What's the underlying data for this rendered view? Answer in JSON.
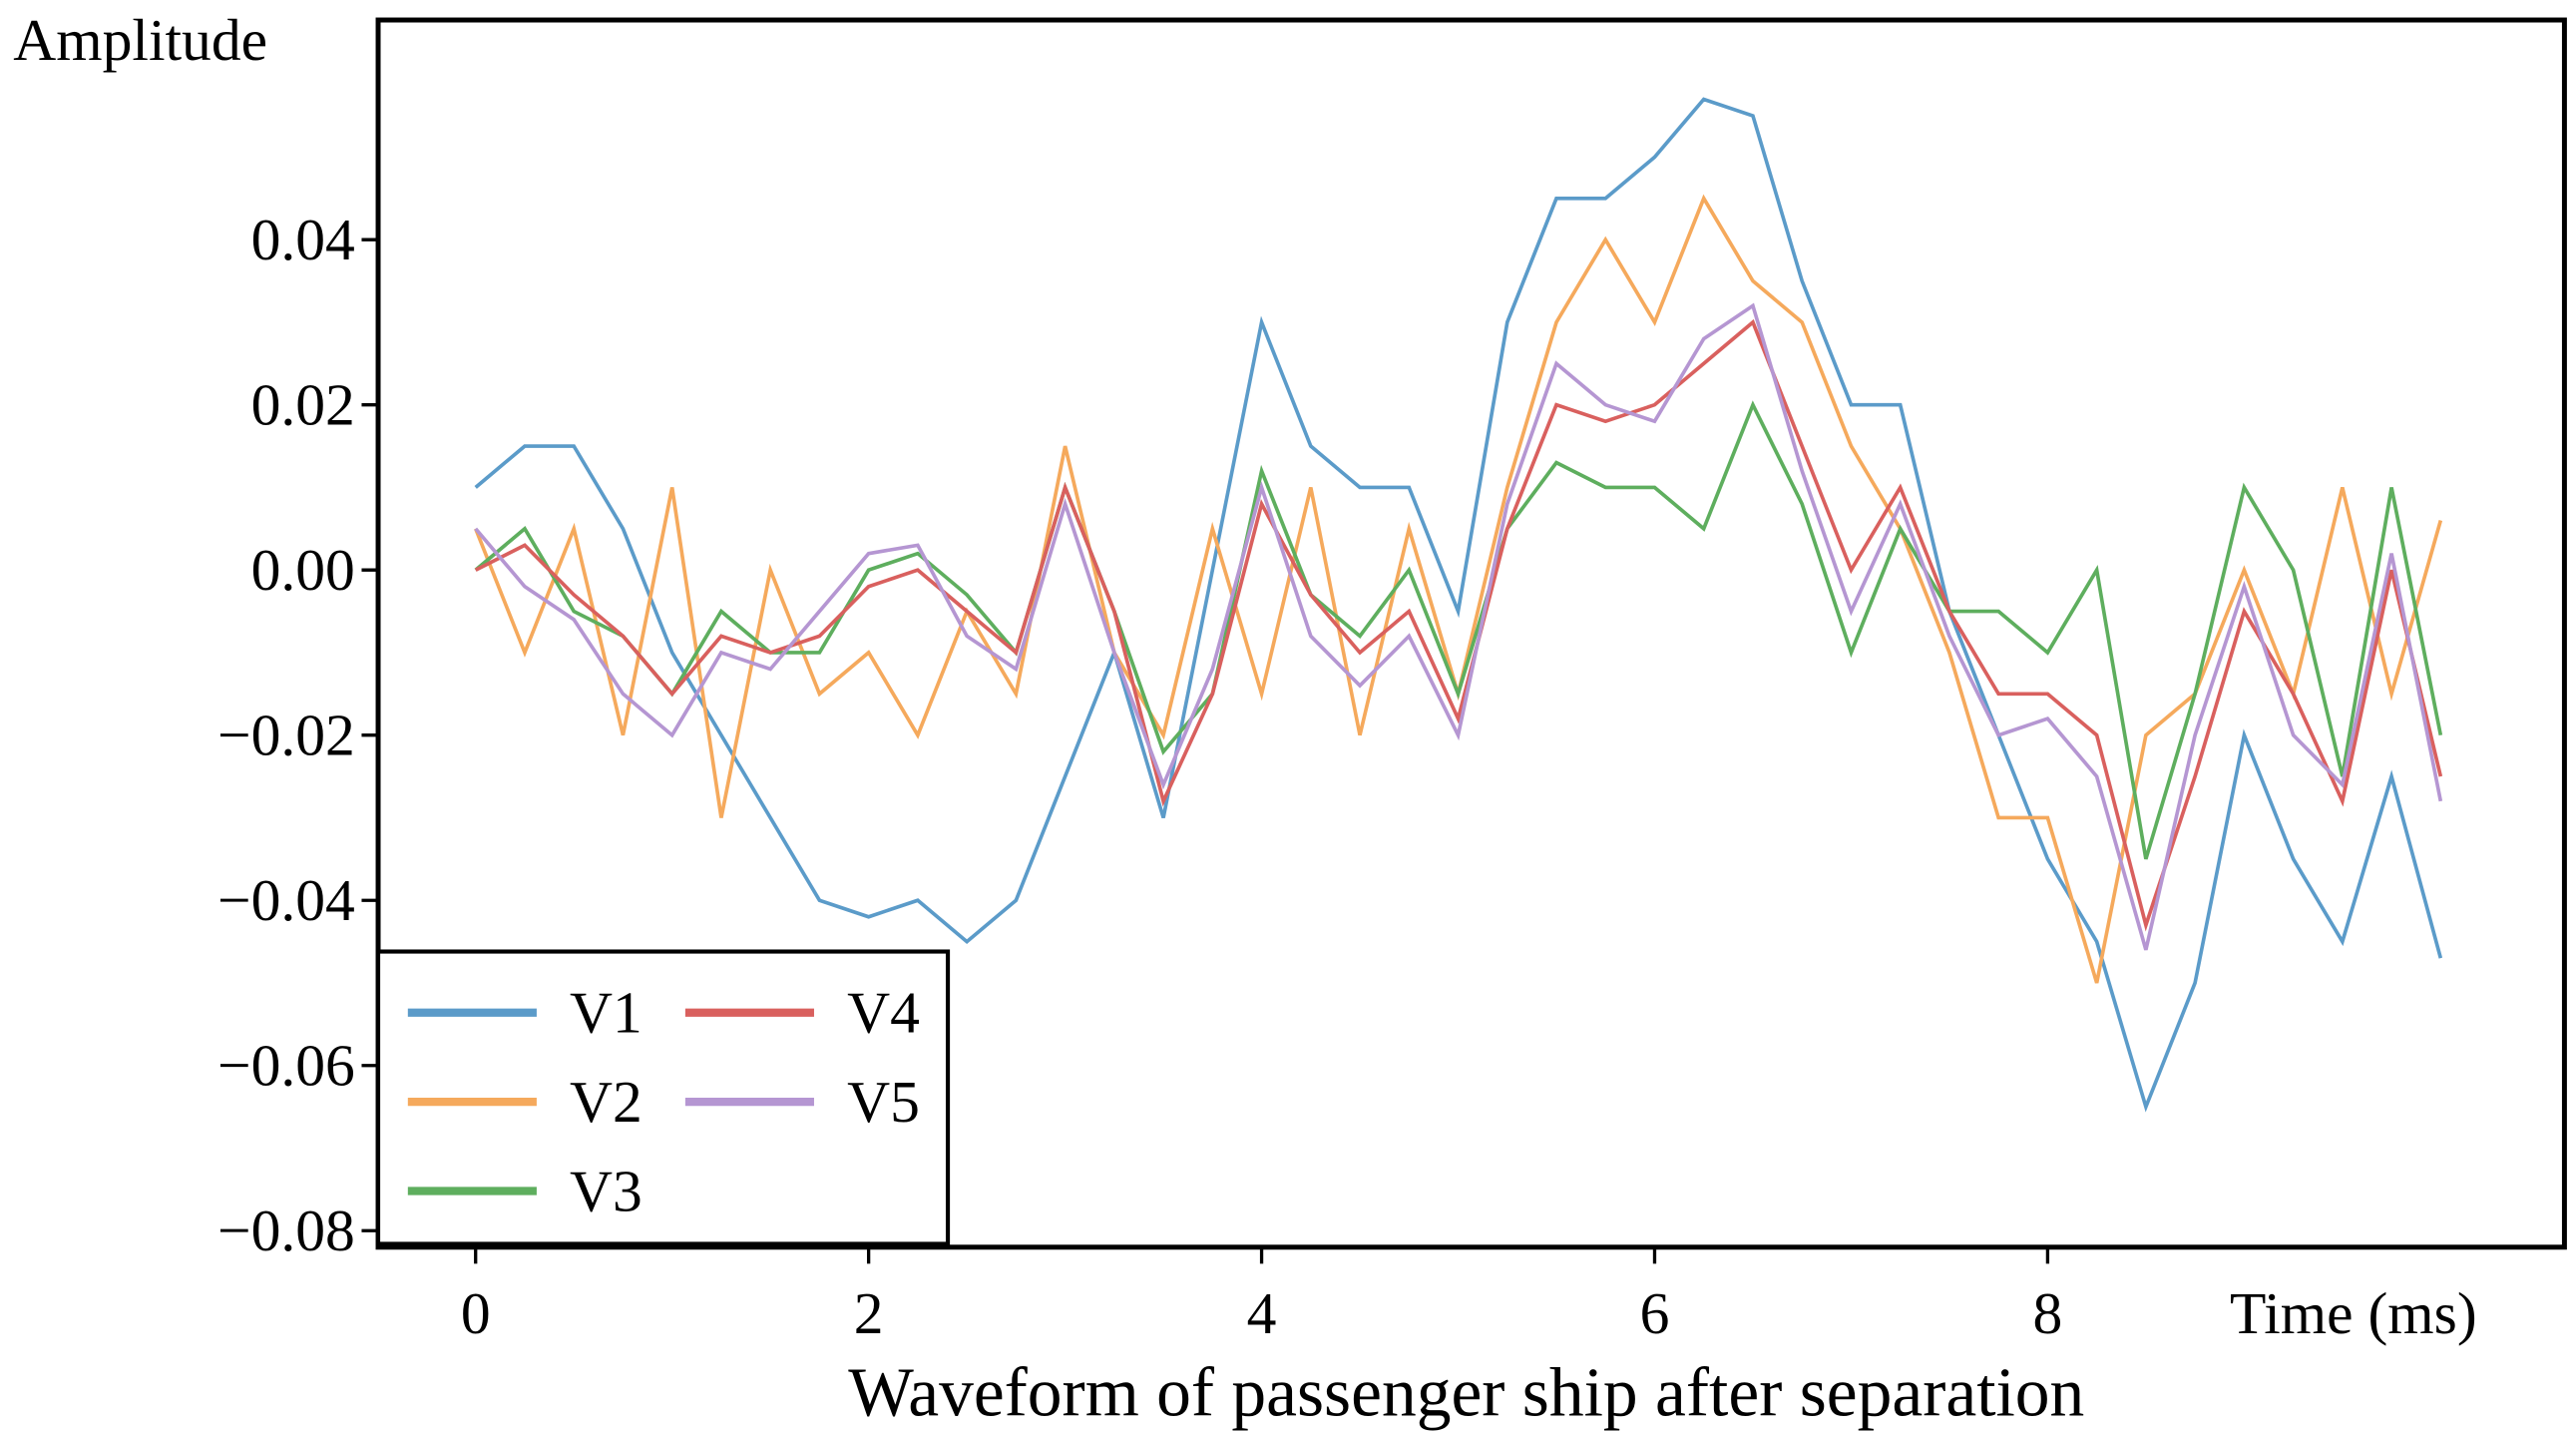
{
  "chart_data": {
    "type": "line",
    "title": "Waveform of passenger ship after separation",
    "y_label": "Amplitude",
    "x_label": "Time (ms)",
    "x": [
      0,
      0.25,
      0.5,
      0.75,
      1,
      1.25,
      1.5,
      1.75,
      2,
      2.25,
      2.5,
      2.75,
      3,
      3.25,
      3.5,
      3.75,
      4,
      4.25,
      4.5,
      4.75,
      5,
      5.25,
      5.5,
      5.75,
      6,
      6.25,
      6.5,
      6.75,
      7,
      7.25,
      7.5,
      7.75,
      8,
      8.25,
      8.5,
      8.75,
      9,
      9.25,
      9.5,
      9.75,
      10
    ],
    "series": [
      {
        "name": "V1",
        "color": "#5b9bc9",
        "values": [
          0.01,
          0.015,
          0.015,
          0.005,
          -0.01,
          -0.02,
          -0.03,
          -0.04,
          -0.042,
          -0.04,
          -0.045,
          -0.04,
          -0.025,
          -0.01,
          -0.03,
          0.0,
          0.03,
          0.015,
          0.01,
          0.01,
          -0.005,
          0.03,
          0.045,
          0.045,
          0.05,
          0.057,
          0.055,
          0.035,
          0.02,
          0.02,
          -0.005,
          -0.02,
          -0.035,
          -0.045,
          -0.065,
          -0.05,
          -0.02,
          -0.035,
          -0.045,
          -0.025,
          -0.047
        ]
      },
      {
        "name": "V2",
        "color": "#f5a95c",
        "values": [
          0.005,
          -0.01,
          0.005,
          -0.02,
          0.01,
          -0.03,
          0.0,
          -0.015,
          -0.01,
          -0.02,
          -0.005,
          -0.015,
          0.015,
          -0.01,
          -0.02,
          0.005,
          -0.015,
          0.01,
          -0.02,
          0.005,
          -0.015,
          0.01,
          0.03,
          0.04,
          0.03,
          0.045,
          0.035,
          0.03,
          0.015,
          0.005,
          -0.01,
          -0.03,
          -0.03,
          -0.05,
          -0.02,
          -0.015,
          0.0,
          -0.015,
          0.01,
          -0.015,
          0.006
        ]
      },
      {
        "name": "V3",
        "color": "#5eae5e",
        "values": [
          0.0,
          0.005,
          -0.005,
          -0.008,
          -0.015,
          -0.005,
          -0.01,
          -0.01,
          0.0,
          0.002,
          -0.003,
          -0.01,
          0.01,
          -0.005,
          -0.022,
          -0.015,
          0.012,
          -0.003,
          -0.008,
          0.0,
          -0.015,
          0.005,
          0.013,
          0.01,
          0.01,
          0.005,
          0.02,
          0.008,
          -0.01,
          0.005,
          -0.005,
          -0.005,
          -0.01,
          0.0,
          -0.035,
          -0.015,
          0.01,
          0.0,
          -0.025,
          0.01,
          -0.02
        ]
      },
      {
        "name": "V4",
        "color": "#d9605e",
        "values": [
          0.0,
          0.003,
          -0.003,
          -0.008,
          -0.015,
          -0.008,
          -0.01,
          -0.008,
          -0.002,
          0.0,
          -0.005,
          -0.01,
          0.01,
          -0.005,
          -0.028,
          -0.015,
          0.008,
          -0.003,
          -0.01,
          -0.005,
          -0.018,
          0.005,
          0.02,
          0.018,
          0.02,
          0.025,
          0.03,
          0.015,
          0.0,
          0.01,
          -0.005,
          -0.015,
          -0.015,
          -0.02,
          -0.043,
          -0.025,
          -0.005,
          -0.015,
          -0.028,
          0.0,
          -0.025
        ]
      },
      {
        "name": "V5",
        "color": "#b596d2",
        "values": [
          0.005,
          -0.002,
          -0.006,
          -0.015,
          -0.02,
          -0.01,
          -0.012,
          -0.005,
          0.002,
          0.003,
          -0.008,
          -0.012,
          0.008,
          -0.01,
          -0.026,
          -0.012,
          0.01,
          -0.008,
          -0.014,
          -0.008,
          -0.02,
          0.008,
          0.025,
          0.02,
          0.018,
          0.028,
          0.032,
          0.012,
          -0.005,
          0.008,
          -0.008,
          -0.02,
          -0.018,
          -0.025,
          -0.046,
          -0.02,
          -0.002,
          -0.02,
          -0.026,
          0.002,
          -0.028
        ]
      }
    ],
    "xlim": [
      -0.496,
      10.63
    ],
    "xticks": [
      0,
      2,
      4,
      6,
      8
    ],
    "ylim": [
      -0.082,
      0.0666
    ],
    "yticks": [
      {
        "value": -0.08,
        "label": "−0.08"
      },
      {
        "value": -0.06,
        "label": "−0.06"
      },
      {
        "value": -0.04,
        "label": "−0.04"
      },
      {
        "value": -0.02,
        "label": "−0.02"
      },
      {
        "value": 0,
        "label": "0.00"
      },
      {
        "value": 0.02,
        "label": "0.02"
      },
      {
        "value": 0.04,
        "label": "0.04"
      }
    ],
    "legend": "lower left"
  }
}
